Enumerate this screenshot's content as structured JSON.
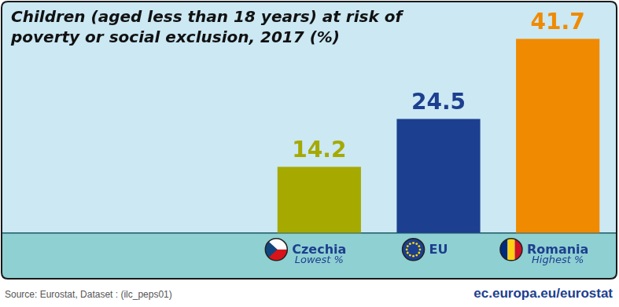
{
  "chart_data": {
    "type": "bar",
    "title": "Children (aged less than 18 years) at risk of poverty or social exclusion, 2017 (%)",
    "categories": [
      "Czechia",
      "EU",
      "Romania"
    ],
    "values": [
      14.2,
      24.5,
      41.7
    ],
    "colors": [
      "#a5a900",
      "#1d3f8f",
      "#f08a00"
    ],
    "data_labels": true,
    "tick_labels": "x",
    "grid": false,
    "annotations": [
      {
        "category": "Czechia",
        "text": "Lowest %"
      },
      {
        "category": "Romania",
        "text": "Highest %"
      }
    ],
    "source": "Source: Eurostat, Dataset : (ilc_peps01)",
    "footer": "ec.europa.eu/eurostat"
  }
}
